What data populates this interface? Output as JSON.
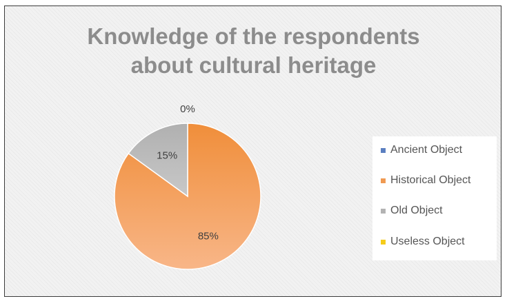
{
  "chart_data": {
    "type": "pie",
    "title_lines": [
      "Knowledge of the respondents",
      "about cultural heritage"
    ],
    "categories": [
      "Ancient Object",
      "Historical Object",
      "Old Object",
      "Useless Object"
    ],
    "values": [
      0,
      85,
      15,
      0
    ],
    "labels": [
      "0%",
      "85%",
      "15%",
      ""
    ],
    "colors": [
      "#5b7fc0",
      "#f09a52",
      "#b3b3b3",
      "#f5cc1a"
    ],
    "legend_position": "right"
  }
}
